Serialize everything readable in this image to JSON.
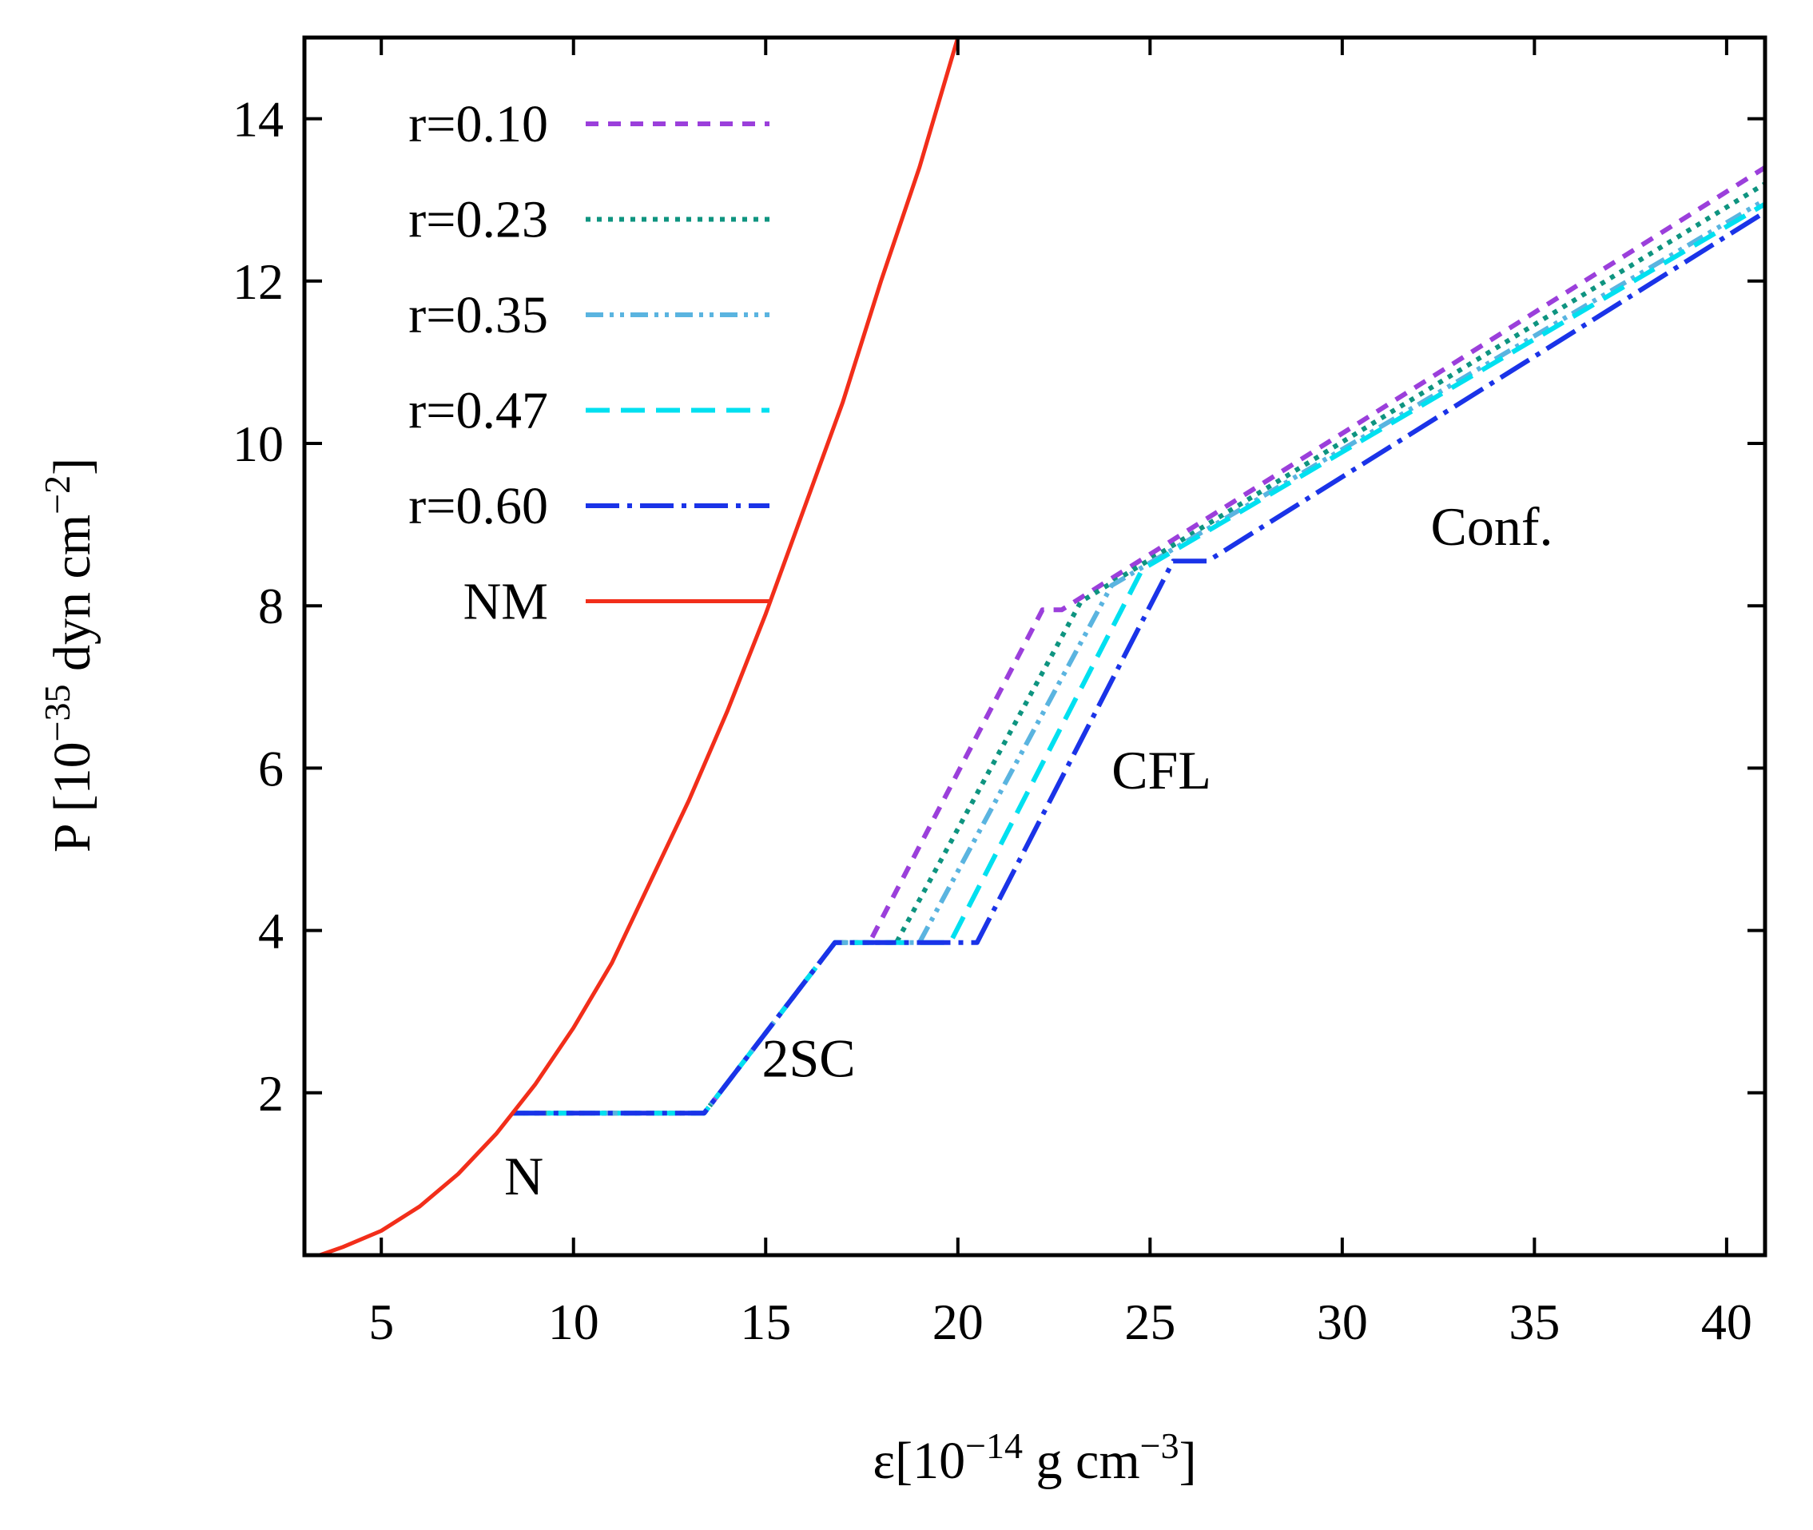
{
  "chart_data": {
    "type": "line",
    "title": "",
    "xlabel": {
      "base": "ε[10",
      "exp1": "−14",
      "mid": " g cm",
      "exp2": "−3",
      "end": "]"
    },
    "ylabel": {
      "base": "P  [10",
      "exp1": "−35",
      "mid": " dyn cm",
      "exp2": "−2",
      "end": "]"
    },
    "xlim": [
      3,
      41
    ],
    "ylim": [
      0,
      15
    ],
    "xticks": [
      5,
      10,
      15,
      20,
      25,
      30,
      35,
      40
    ],
    "yticks": [
      2,
      4,
      6,
      8,
      10,
      12,
      14
    ],
    "grid": false,
    "legend_position": "top-left",
    "series": [
      {
        "name": "r=0.10",
        "color": "#9b3fdb",
        "dash": "dashed-short",
        "points": [
          [
            8.4,
            1.75
          ],
          [
            13.4,
            1.75
          ],
          [
            16.8,
            3.85
          ],
          [
            17.7,
            3.85
          ],
          [
            22.2,
            7.95
          ],
          [
            22.7,
            7.95
          ],
          [
            41,
            13.4
          ]
        ]
      },
      {
        "name": "r=0.23",
        "color": "#0e9480",
        "dash": "dotted",
        "points": [
          [
            8.4,
            1.75
          ],
          [
            13.4,
            1.75
          ],
          [
            16.8,
            3.85
          ],
          [
            18.4,
            3.85
          ],
          [
            23.2,
            8.05
          ],
          [
            41,
            13.2
          ]
        ]
      },
      {
        "name": "r=0.35",
        "color": "#5ab4e0",
        "dash": "dash-dot-dot",
        "points": [
          [
            8.4,
            1.75
          ],
          [
            13.4,
            1.75
          ],
          [
            16.8,
            3.85
          ],
          [
            19.0,
            3.85
          ],
          [
            24.0,
            8.25
          ],
          [
            41,
            13.0
          ]
        ]
      },
      {
        "name": "r=0.47",
        "color": "#00e0f0",
        "dash": "long-dash",
        "points": [
          [
            8.4,
            1.75
          ],
          [
            13.4,
            1.75
          ],
          [
            16.8,
            3.85
          ],
          [
            19.8,
            3.85
          ],
          [
            24.8,
            8.45
          ],
          [
            41,
            12.95
          ]
        ]
      },
      {
        "name": "r=0.60",
        "color": "#1a33e8",
        "dash": "long-dash-dot",
        "points": [
          [
            8.4,
            1.75
          ],
          [
            13.4,
            1.75
          ],
          [
            16.8,
            3.85
          ],
          [
            20.5,
            3.85
          ],
          [
            25.6,
            8.55
          ],
          [
            26.5,
            8.55
          ],
          [
            41,
            12.85
          ]
        ]
      },
      {
        "name": "NM",
        "color": "#f22e1a",
        "dash": "solid",
        "points": [
          [
            3.4,
            0.0
          ],
          [
            4,
            0.1
          ],
          [
            5,
            0.3
          ],
          [
            6,
            0.6
          ],
          [
            7,
            1.0
          ],
          [
            8,
            1.5
          ],
          [
            9,
            2.1
          ],
          [
            10,
            2.8
          ],
          [
            11,
            3.6
          ],
          [
            12,
            4.6
          ],
          [
            13,
            5.6
          ],
          [
            14,
            6.7
          ],
          [
            15,
            7.9
          ],
          [
            16,
            9.2
          ],
          [
            17,
            10.5
          ],
          [
            18,
            12.0
          ],
          [
            19,
            13.4
          ],
          [
            20,
            15.0
          ]
        ]
      }
    ],
    "annotations": [
      {
        "text": "N",
        "x": 8.2,
        "y": 0.75
      },
      {
        "text": "2SC",
        "x": 14.9,
        "y": 2.2
      },
      {
        "text": "CFL",
        "x": 24.0,
        "y": 5.75
      },
      {
        "text": "Conf.",
        "x": 32.3,
        "y": 8.75
      }
    ]
  }
}
